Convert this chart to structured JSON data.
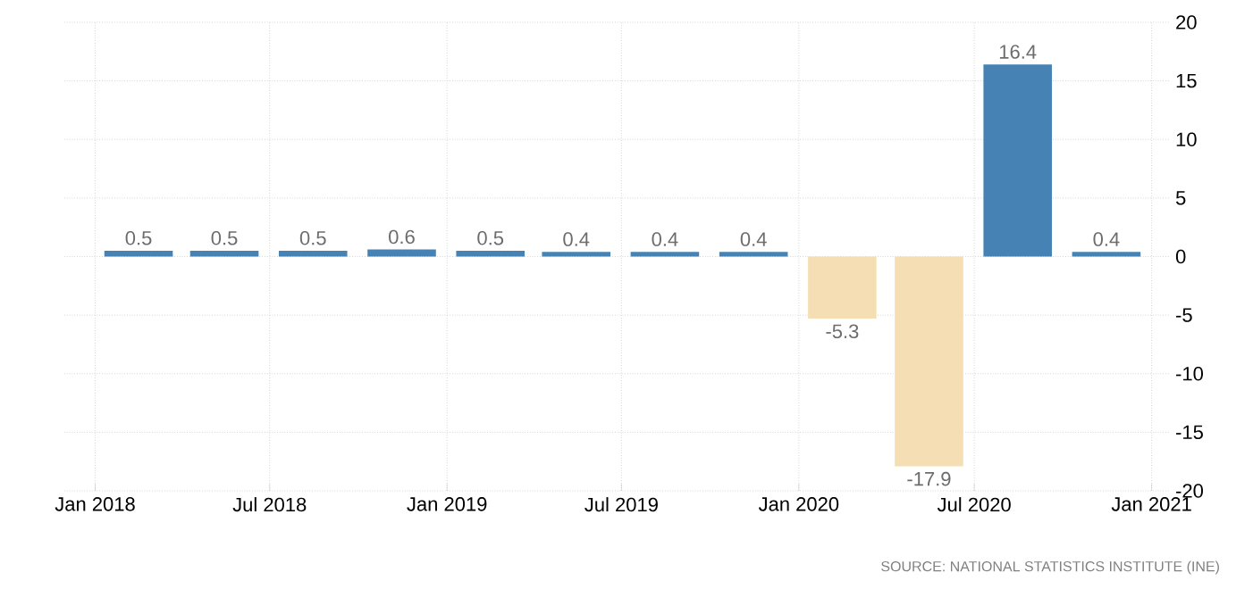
{
  "chart_data": {
    "type": "bar",
    "x": [
      "2018-02-15",
      "2018-05-15",
      "2018-08-15",
      "2018-11-15",
      "2019-02-15",
      "2019-05-15",
      "2019-08-15",
      "2019-11-15",
      "2020-02-15",
      "2020-05-15",
      "2020-08-15",
      "2020-11-15"
    ],
    "values": [
      0.5,
      0.5,
      0.5,
      0.6,
      0.5,
      0.4,
      0.4,
      0.4,
      -5.3,
      -17.9,
      16.4,
      0.4
    ],
    "colors": [
      "#4682b4",
      "#4682b4",
      "#4682b4",
      "#4682b4",
      "#4682b4",
      "#4682b4",
      "#4682b4",
      "#4682b4",
      "#f5deb3",
      "#f5deb3",
      "#4682b4",
      "#4682b4"
    ],
    "data_labels": true,
    "xlim": [
      "2017-11-30",
      "2021-01-19"
    ],
    "xticks": [
      {
        "value": "2018-01-01",
        "label": "Jan 2018"
      },
      {
        "value": "2018-07-01",
        "label": "Jul 2018"
      },
      {
        "value": "2019-01-01",
        "label": "Jan 2019"
      },
      {
        "value": "2019-07-01",
        "label": "Jul 2019"
      },
      {
        "value": "2020-01-01",
        "label": "Jan 2020"
      },
      {
        "value": "2020-07-01",
        "label": "Jul 2020"
      },
      {
        "value": "2021-01-01",
        "label": "Jan 2021"
      }
    ],
    "ylim": [
      -20,
      20
    ],
    "yticks": [
      -20,
      -15,
      -10,
      -5,
      0,
      5,
      10,
      15,
      20
    ],
    "grid": true,
    "annotations": [
      "SOURCE: NATIONAL STATISTICS INSTITUTE (INE)"
    ]
  }
}
